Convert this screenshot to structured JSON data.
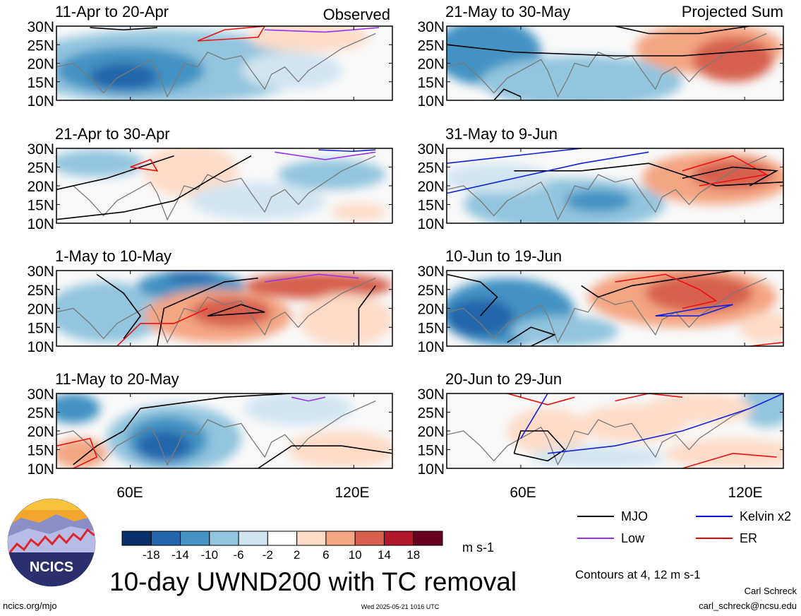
{
  "footer": {
    "main_title": "10-day UWND200 with TC removal",
    "source": "ncics.org/mjo",
    "timestamp": "Wed 2025-05-21 1016 UTC",
    "author": "Carl Schreck",
    "email": "carl_schreck@ncsu.edu",
    "logo_text": "NCICS",
    "contour_note": "Contours at 4, 12 m s-1",
    "units": "m s-1"
  },
  "chart_data": {
    "type": "heatmap",
    "variable": "UWND200",
    "column_labels": [
      "Observed",
      "Projected Sum"
    ],
    "panels": [
      {
        "period": "11-Apr to 20-Apr",
        "column": "Observed"
      },
      {
        "period": "21-Apr to 30-Apr",
        "column": "Observed"
      },
      {
        "period": "1-May to 10-May",
        "column": "Observed"
      },
      {
        "period": "11-May to 20-May",
        "column": "Observed"
      },
      {
        "period": "21-May to 30-May",
        "column": "Projected Sum"
      },
      {
        "period": "31-May to 9-Jun",
        "column": "Projected Sum"
      },
      {
        "period": "10-Jun to 19-Jun",
        "column": "Projected Sum"
      },
      {
        "period": "20-Jun to 29-Jun",
        "column": "Projected Sum"
      }
    ],
    "lat_ticks": [
      "30N",
      "25N",
      "20N",
      "15N",
      "10N"
    ],
    "lon_ticks": [
      "60E",
      "120E"
    ],
    "colorbar": {
      "labels": [
        "-18",
        "-14",
        "-10",
        "-6",
        "-2",
        "2",
        "6",
        "10",
        "14",
        "18"
      ],
      "colors": [
        "#08306b",
        "#2166ac",
        "#4393c3",
        "#92c5de",
        "#d1e5f0",
        "#ffffff",
        "#fddbc7",
        "#f4a582",
        "#d6604d",
        "#b2182b",
        "#67001f"
      ]
    },
    "legend": [
      {
        "name": "MJO",
        "color": "#000000"
      },
      {
        "name": "Kelvin x2",
        "color": "#0000dd"
      },
      {
        "name": "Low",
        "color": "#9933ee"
      },
      {
        "name": "ER",
        "color": "#ee0000"
      }
    ]
  }
}
